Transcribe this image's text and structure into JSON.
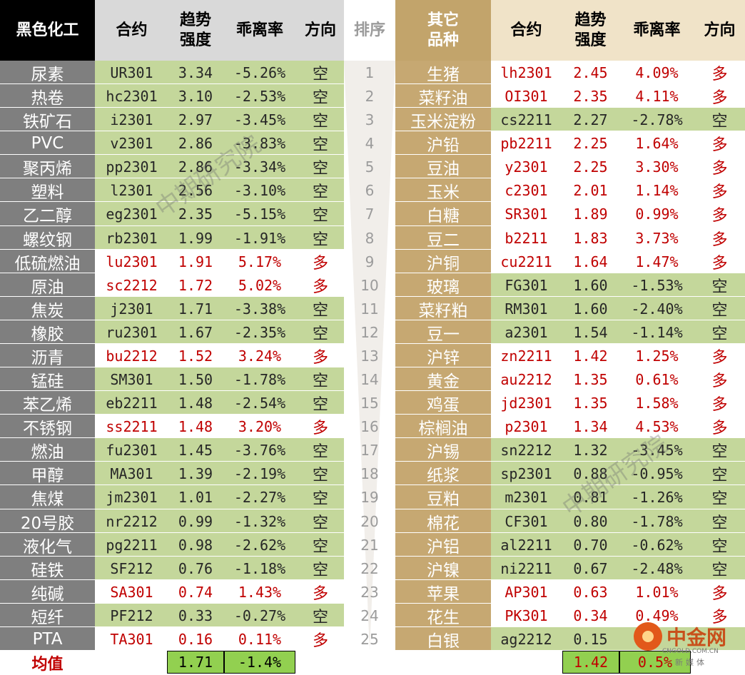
{
  "colors": {
    "dark_header": "#000000",
    "light_header": "#d9d9d9",
    "gold_header": "#c2a46b",
    "name_bg_left": "#7f7f7f",
    "name_bg_right": "#c6a872",
    "short_bg": "#c4d79b",
    "long_bg": "#ffffff",
    "short_text": "#262626",
    "long_text": "#c00000",
    "rank_bg": "#f3f3f3",
    "avg_highlight": "#92d050"
  },
  "headers": {
    "left_group": "黑色化工",
    "contract": "合约",
    "trend": "趋势\n强度",
    "deviation": "乖离率",
    "direction": "方向",
    "rank": "排序",
    "right_group": "其它\n品种"
  },
  "left_rows": [
    {
      "name": "尿素",
      "contract": "UR301",
      "trend": "3.34",
      "deviation": "-5.26%",
      "direction": "空",
      "side": "short"
    },
    {
      "name": "热卷",
      "contract": "hc2301",
      "trend": "3.10",
      "deviation": "-2.53%",
      "direction": "空",
      "side": "short"
    },
    {
      "name": "铁矿石",
      "contract": "i2301",
      "trend": "2.97",
      "deviation": "-3.45%",
      "direction": "空",
      "side": "short"
    },
    {
      "name": "PVC",
      "contract": "v2301",
      "trend": "2.86",
      "deviation": "-3.83%",
      "direction": "空",
      "side": "short"
    },
    {
      "name": "聚丙烯",
      "contract": "pp2301",
      "trend": "2.86",
      "deviation": "-3.34%",
      "direction": "空",
      "side": "short"
    },
    {
      "name": "塑料",
      "contract": "l2301",
      "trend": "2.56",
      "deviation": "-3.10%",
      "direction": "空",
      "side": "short"
    },
    {
      "name": "乙二醇",
      "contract": "eg2301",
      "trend": "2.35",
      "deviation": "-5.15%",
      "direction": "空",
      "side": "short"
    },
    {
      "name": "螺纹钢",
      "contract": "rb2301",
      "trend": "1.99",
      "deviation": "-1.91%",
      "direction": "空",
      "side": "short"
    },
    {
      "name": "低硫燃油",
      "contract": "lu2301",
      "trend": "1.91",
      "deviation": "5.17%",
      "direction": "多",
      "side": "long"
    },
    {
      "name": "原油",
      "contract": "sc2212",
      "trend": "1.72",
      "deviation": "5.02%",
      "direction": "多",
      "side": "long"
    },
    {
      "name": "焦炭",
      "contract": "j2301",
      "trend": "1.71",
      "deviation": "-3.38%",
      "direction": "空",
      "side": "short"
    },
    {
      "name": "橡胶",
      "contract": "ru2301",
      "trend": "1.67",
      "deviation": "-2.35%",
      "direction": "空",
      "side": "short"
    },
    {
      "name": "沥青",
      "contract": "bu2212",
      "trend": "1.52",
      "deviation": "3.24%",
      "direction": "多",
      "side": "long"
    },
    {
      "name": "锰硅",
      "contract": "SM301",
      "trend": "1.50",
      "deviation": "-1.78%",
      "direction": "空",
      "side": "short"
    },
    {
      "name": "苯乙烯",
      "contract": "eb2211",
      "trend": "1.48",
      "deviation": "-2.54%",
      "direction": "空",
      "side": "short"
    },
    {
      "name": "不锈钢",
      "contract": "ss2211",
      "trend": "1.48",
      "deviation": "3.20%",
      "direction": "多",
      "side": "long"
    },
    {
      "name": "燃油",
      "contract": "fu2301",
      "trend": "1.45",
      "deviation": "-3.76%",
      "direction": "空",
      "side": "short"
    },
    {
      "name": "甲醇",
      "contract": "MA301",
      "trend": "1.39",
      "deviation": "-2.19%",
      "direction": "空",
      "side": "short"
    },
    {
      "name": "焦煤",
      "contract": "jm2301",
      "trend": "1.01",
      "deviation": "-2.27%",
      "direction": "空",
      "side": "short"
    },
    {
      "name": "20号胶",
      "contract": "nr2212",
      "trend": "0.99",
      "deviation": "-1.32%",
      "direction": "空",
      "side": "short"
    },
    {
      "name": "液化气",
      "contract": "pg2211",
      "trend": "0.98",
      "deviation": "-2.62%",
      "direction": "空",
      "side": "short"
    },
    {
      "name": "硅铁",
      "contract": "SF212",
      "trend": "0.76",
      "deviation": "-1.18%",
      "direction": "空",
      "side": "short"
    },
    {
      "name": "纯碱",
      "contract": "SA301",
      "trend": "0.74",
      "deviation": "1.43%",
      "direction": "多",
      "side": "long"
    },
    {
      "name": "短纤",
      "contract": "PF212",
      "trend": "0.33",
      "deviation": "-0.27%",
      "direction": "空",
      "side": "short"
    },
    {
      "name": "PTA",
      "contract": "TA301",
      "trend": "0.16",
      "deviation": "0.11%",
      "direction": "多",
      "side": "long"
    }
  ],
  "ranks": [
    "1",
    "2",
    "3",
    "4",
    "5",
    "6",
    "7",
    "8",
    "9",
    "10",
    "11",
    "12",
    "13",
    "14",
    "15",
    "16",
    "17",
    "18",
    "19",
    "20",
    "21",
    "22",
    "23",
    "24",
    "25"
  ],
  "right_rows": [
    {
      "name": "生猪",
      "contract": "lh2301",
      "trend": "2.45",
      "deviation": "4.09%",
      "direction": "多",
      "side": "long"
    },
    {
      "name": "菜籽油",
      "contract": "OI301",
      "trend": "2.35",
      "deviation": "4.11%",
      "direction": "多",
      "side": "long"
    },
    {
      "name": "玉米淀粉",
      "contract": "cs2211",
      "trend": "2.27",
      "deviation": "-2.78%",
      "direction": "空",
      "side": "short"
    },
    {
      "name": "沪铅",
      "contract": "pb2211",
      "trend": "2.25",
      "deviation": "1.64%",
      "direction": "多",
      "side": "long"
    },
    {
      "name": "豆油",
      "contract": "y2301",
      "trend": "2.25",
      "deviation": "3.30%",
      "direction": "多",
      "side": "long"
    },
    {
      "name": "玉米",
      "contract": "c2301",
      "trend": "2.01",
      "deviation": "1.14%",
      "direction": "多",
      "side": "long"
    },
    {
      "name": "白糖",
      "contract": "SR301",
      "trend": "1.89",
      "deviation": "0.99%",
      "direction": "多",
      "side": "long"
    },
    {
      "name": "豆二",
      "contract": "b2211",
      "trend": "1.83",
      "deviation": "3.73%",
      "direction": "多",
      "side": "long"
    },
    {
      "name": "沪铜",
      "contract": "cu2211",
      "trend": "1.64",
      "deviation": "1.47%",
      "direction": "多",
      "side": "long"
    },
    {
      "name": "玻璃",
      "contract": "FG301",
      "trend": "1.60",
      "deviation": "-1.53%",
      "direction": "空",
      "side": "short"
    },
    {
      "name": "菜籽粕",
      "contract": "RM301",
      "trend": "1.60",
      "deviation": "-2.40%",
      "direction": "空",
      "side": "short"
    },
    {
      "name": "豆一",
      "contract": "a2301",
      "trend": "1.54",
      "deviation": "-1.14%",
      "direction": "空",
      "side": "short"
    },
    {
      "name": "沪锌",
      "contract": "zn2211",
      "trend": "1.42",
      "deviation": "1.25%",
      "direction": "多",
      "side": "long"
    },
    {
      "name": "黄金",
      "contract": "au2212",
      "trend": "1.35",
      "deviation": "0.61%",
      "direction": "多",
      "side": "long"
    },
    {
      "name": "鸡蛋",
      "contract": "jd2301",
      "trend": "1.35",
      "deviation": "1.58%",
      "direction": "多",
      "side": "long"
    },
    {
      "name": "棕榈油",
      "contract": "p2301",
      "trend": "1.34",
      "deviation": "4.53%",
      "direction": "多",
      "side": "long"
    },
    {
      "name": "沪锡",
      "contract": "sn2212",
      "trend": "1.32",
      "deviation": "-3.45%",
      "direction": "空",
      "side": "short"
    },
    {
      "name": "纸浆",
      "contract": "sp2301",
      "trend": "0.88",
      "deviation": "-0.95%",
      "direction": "空",
      "side": "short"
    },
    {
      "name": "豆粕",
      "contract": "m2301",
      "trend": "0.81",
      "deviation": "-1.26%",
      "direction": "空",
      "side": "short"
    },
    {
      "name": "棉花",
      "contract": "CF301",
      "trend": "0.80",
      "deviation": "-1.78%",
      "direction": "空",
      "side": "short"
    },
    {
      "name": "沪铝",
      "contract": "al2211",
      "trend": "0.70",
      "deviation": "-0.62%",
      "direction": "空",
      "side": "short"
    },
    {
      "name": "沪镍",
      "contract": "ni2211",
      "trend": "0.67",
      "deviation": "-2.48%",
      "direction": "空",
      "side": "short"
    },
    {
      "name": "苹果",
      "contract": "AP301",
      "trend": "0.63",
      "deviation": "1.01%",
      "direction": "多",
      "side": "long"
    },
    {
      "name": "花生",
      "contract": "PK301",
      "trend": "0.34",
      "deviation": "0.49%",
      "direction": "多",
      "side": "long"
    },
    {
      "name": "白银",
      "contract": "ag2212",
      "trend": "0.15",
      "deviation": "",
      "direction": "",
      "side": "short"
    }
  ],
  "footer": {
    "label": "均值",
    "left_trend_avg": "1.71",
    "left_dev_avg": "-1.4%",
    "right_trend_avg": "1.42",
    "right_dev_avg": "0.5%"
  },
  "watermark_text": "中期研究院",
  "logo": {
    "brand": "中金网",
    "domain": "CNGOLD.COM.CN",
    "media": "新媒体"
  }
}
